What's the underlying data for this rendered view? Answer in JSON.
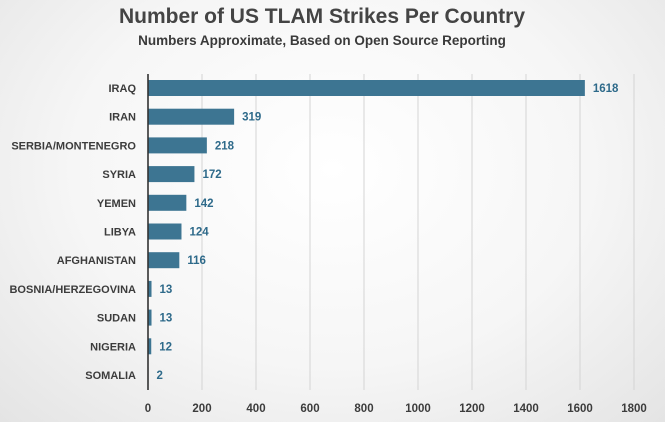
{
  "colors": {
    "bar": "#3d7592",
    "data_label": "#2e6a8a"
  },
  "chart_data": {
    "type": "bar",
    "orientation": "horizontal",
    "title": "Number of US TLAM Strikes Per Country",
    "subtitle": "Numbers Approximate, Based on Open Source Reporting",
    "xlabel": "",
    "ylabel": "",
    "categories": [
      "IRAQ",
      "IRAN",
      "SERBIA/MONTENEGRO",
      "SYRIA",
      "YEMEN",
      "LIBYA",
      "AFGHANISTAN",
      "BOSNIA/HERZEGOVINA",
      "SUDAN",
      "NIGERIA",
      "SOMALIA"
    ],
    "values": [
      1618,
      319,
      218,
      172,
      142,
      124,
      116,
      13,
      13,
      12,
      2
    ],
    "xlim": [
      0,
      1800
    ],
    "xticks": [
      0,
      200,
      400,
      600,
      800,
      1000,
      1200,
      1400,
      1600,
      1800
    ],
    "grid": true,
    "legend": "none"
  }
}
